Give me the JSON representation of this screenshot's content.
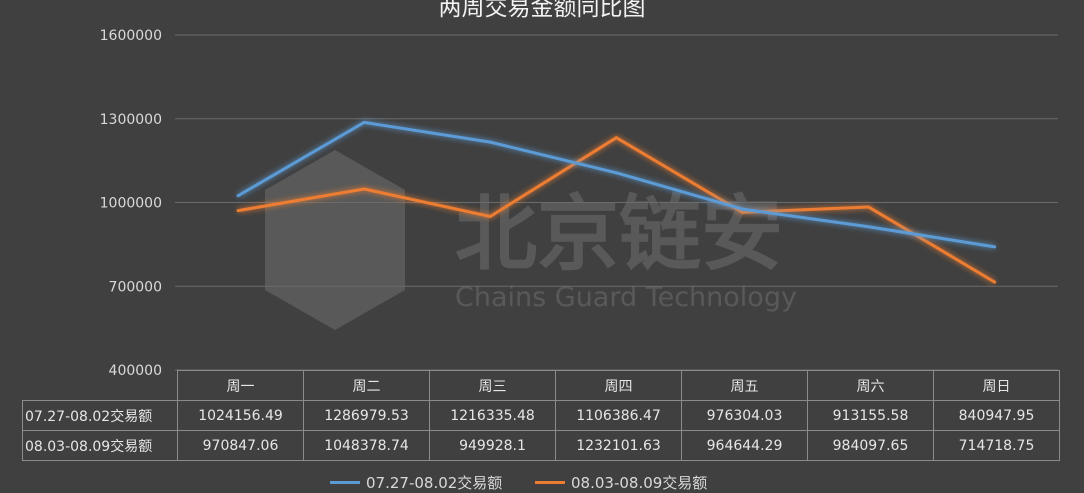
{
  "chart_data": {
    "type": "line",
    "title": "两周交易金额同比图",
    "categories": [
      "周一",
      "周二",
      "周三",
      "周四",
      "周五",
      "周六",
      "周日"
    ],
    "ylim": [
      400000,
      1600000
    ],
    "yticks": [
      "1600000",
      "1300000",
      "1000000",
      "700000",
      "400000"
    ],
    "grid": true,
    "legend_position": "bottom",
    "series": [
      {
        "name": "07.27-08.02交易额",
        "color": "#5b9bd5",
        "values": [
          1024156.49,
          1286979.53,
          1216335.48,
          1106386.47,
          976304.03,
          913155.58,
          840947.95
        ],
        "labels": [
          "1024156.49",
          "1286979.53",
          "1216335.48",
          "1106386.47",
          "976304.03",
          "913155.58",
          "840947.95"
        ]
      },
      {
        "name": "08.03-08.09交易额",
        "color": "#ed7d31",
        "values": [
          970847.06,
          1048378.74,
          949928.1,
          1232101.63,
          964644.29,
          984097.65,
          714718.75
        ],
        "labels": [
          "970847.06",
          "1048378.74",
          "949928.1",
          "1232101.63",
          "964644.29",
          "984097.65",
          "714718.75"
        ]
      }
    ]
  },
  "watermark": {
    "cn": "北京链安",
    "en": "Chains Guard Technology"
  }
}
